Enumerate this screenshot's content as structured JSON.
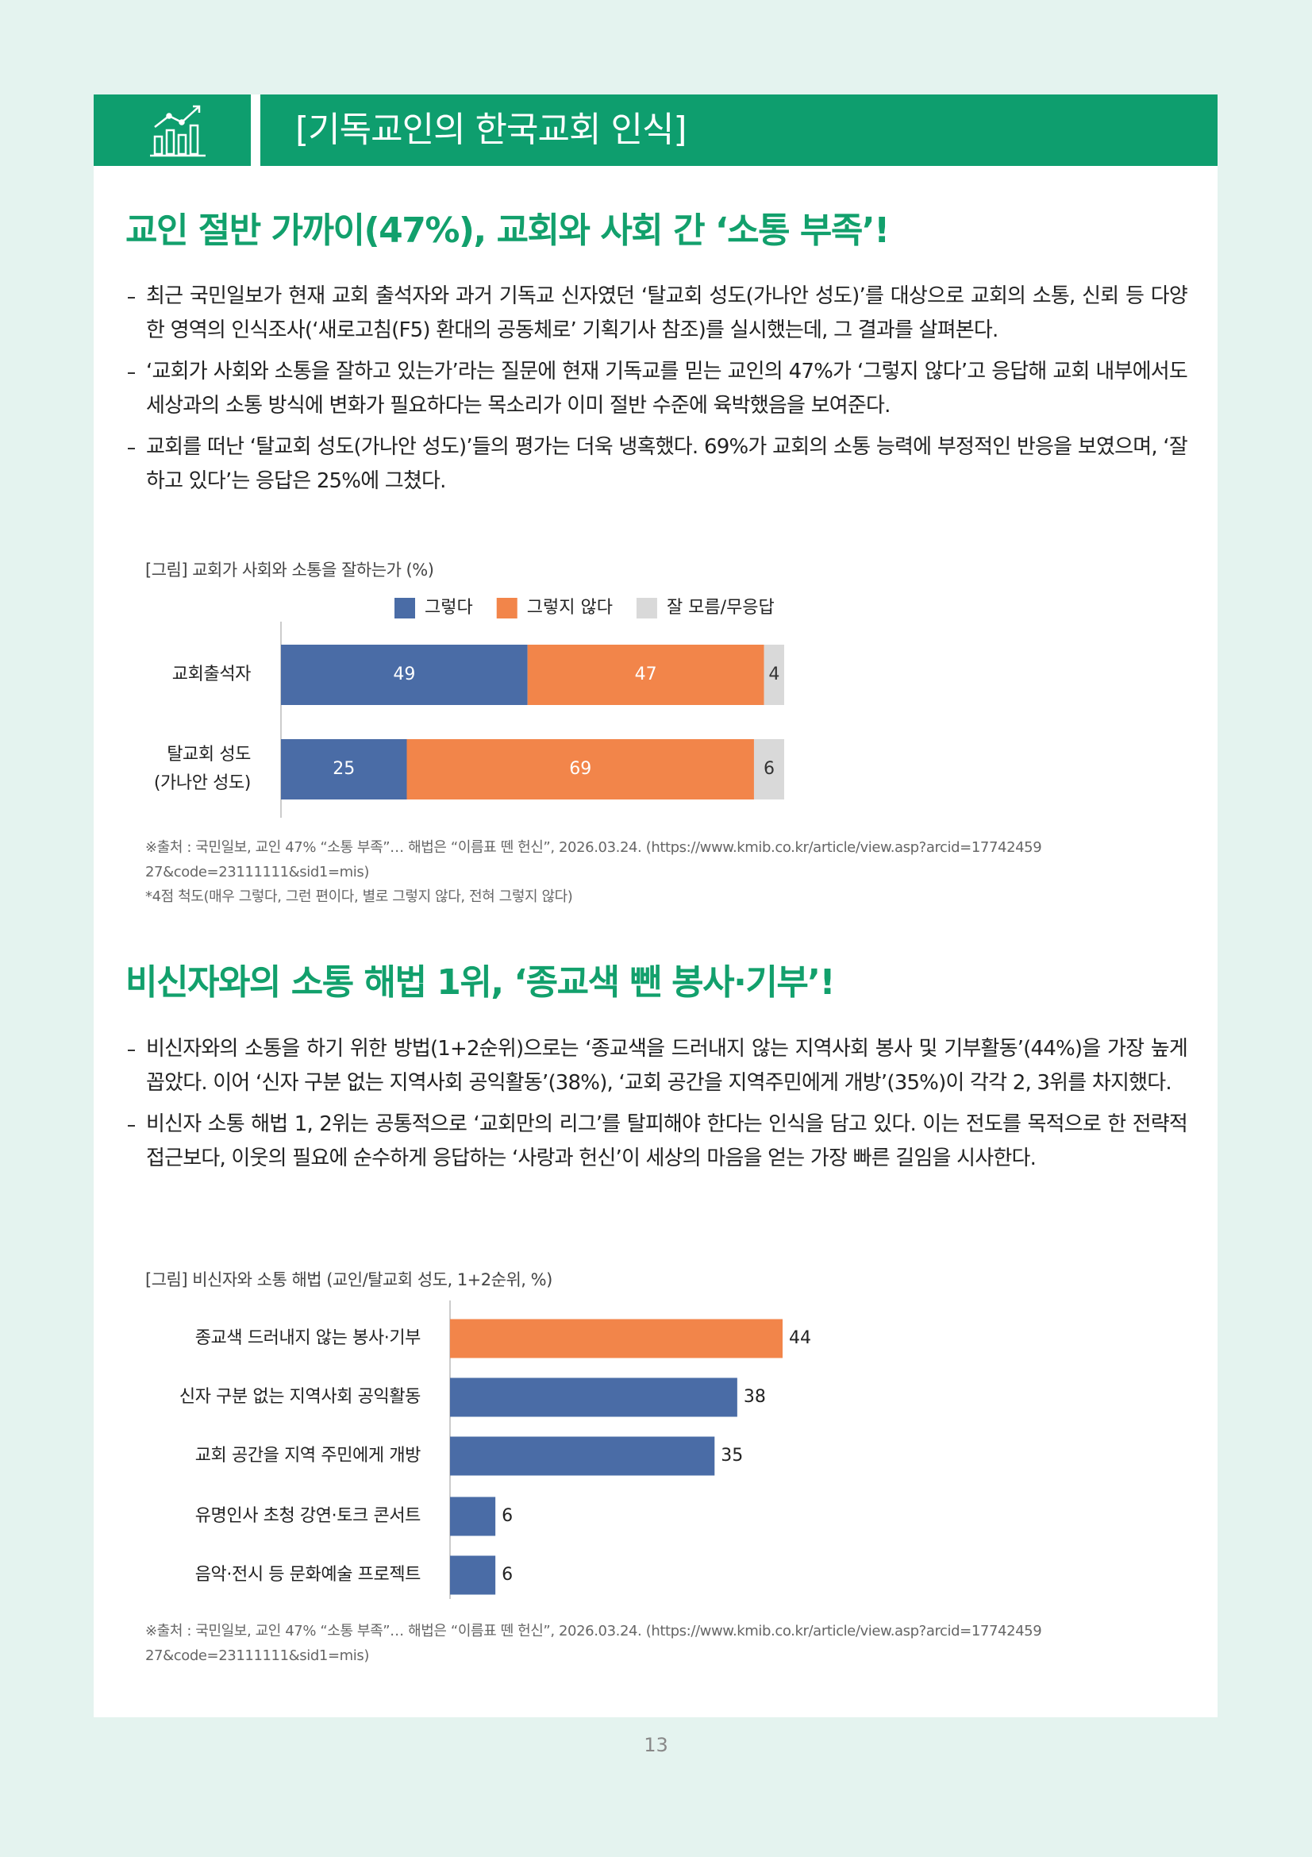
{
  "header": {
    "title": "[기독교인의 한국교회 인식]"
  },
  "sections": [
    {
      "heading": "교인 절반 가까이(47%), 교회와 사회 간 ‘소통 부족’!",
      "bullets": [
        "최근 국민일보가 현재 교회 출석자와 과거 기독교 신자였던 ‘탈교회 성도(가나안 성도)’를 대상으로 교회의 소통, 신뢰 등 다양한 영역의 인식조사(‘새로고침(F5) 환대의 공동체로’ 기획기사 참조)를 실시했는데, 그 결과를 살펴본다.",
        "‘교회가 사회와 소통을 잘하고 있는가’라는 질문에 현재 기독교를 믿는 교인의 47%가 ‘그렇지 않다’고 응답해 교회 내부에서도 세상과의 소통 방식에 변화가 필요하다는 목소리가 이미 절반 수준에 육박했음을 보여준다.",
        "교회를 떠난 ‘탈교회 성도(가나안 성도)’들의 평가는 더욱 냉혹했다. 69%가 교회의 소통 능력에 부정적인 반응을 보였으며, ‘잘하고 있다’는 응답은 25%에 그쳤다."
      ],
      "figure": {
        "caption": "[그림] 교회가 사회와 소통을 잘하는가 (%)",
        "chart": {
          "type": "stacked-bar",
          "categories": [
            "교회출석자",
            "탈교회 성도\n(가나안 성도)"
          ],
          "series": [
            {
              "name": "그렇다",
              "color": "#4a6ca6",
              "values": [
                49,
                25
              ]
            },
            {
              "name": "그렇지 않다",
              "color": "#f2854a",
              "values": [
                47,
                69
              ]
            },
            {
              "name": "잘 모름/무응답",
              "color": "#d9d9d9",
              "values": [
                4,
                6
              ]
            }
          ]
        },
        "sources": [
          "※출처 : 국민일보, 교인 47% “소통 부족”… 해법은 “이름표 뗀 헌신”, 2026.03.24. (https://www.kmib.co.kr/article/view.asp?arcid=1774245927&code=23111111&sid1=mis)",
          "*4점 척도(매우 그렇다, 그런 편이다, 별로 그렇지 않다, 전혀 그렇지 않다)"
        ]
      }
    },
    {
      "heading": "비신자와의 소통 해법 1위, ‘종교색 뺀 봉사·기부’!",
      "bullets": [
        "비신자와의 소통을 하기 위한 방법(1+2순위)으로는 ‘종교색을 드러내지 않는 지역사회 봉사 및 기부활동’(44%)을 가장 높게 꼽았다. 이어 ‘신자 구분 없는 지역사회 공익활동’(38%), ‘교회 공간을 지역주민에게 개방’(35%)이 각각 2, 3위를 차지했다.",
        "비신자 소통 해법 1, 2위는 공통적으로 ‘교회만의 리그’를 탈피해야 한다는 인식을 담고 있다. 이는 전도를 목적으로 한 전략적 접근보다, 이웃의 필요에 순수하게 응답하는 ‘사랑과 헌신’이 세상의 마음을 얻는 가장 빠른 길임을 시사한다."
      ],
      "figure": {
        "caption": "[그림] 비신자와 소통 해법 (교인/탈교회 성도, 1+2순위, %)",
        "chart": {
          "type": "bar",
          "categories": [
            "종교색 드러내지 않는 봉사·기부",
            "신자 구분 없는 지역사회 공익활동",
            "교회 공간을 지역 주민에게 개방",
            "유명인사 초청 강연·토크 콘서트",
            "음악·전시 등 문화예술 프로젝트"
          ],
          "values": [
            44,
            38,
            35,
            6,
            6
          ],
          "colors": [
            "#f2854a",
            "#4a6ca6",
            "#4a6ca6",
            "#4a6ca6",
            "#4a6ca6"
          ]
        },
        "sources": [
          "※출처 : 국민일보, 교인 47% “소통 부족”… 해법은 “이름표 뗀 헌신”, 2026.03.24. (https://www.kmib.co.kr/article/view.asp?arcid=1774245927&code=23111111&sid1=mis)"
        ]
      }
    }
  ],
  "page_number": 13
}
